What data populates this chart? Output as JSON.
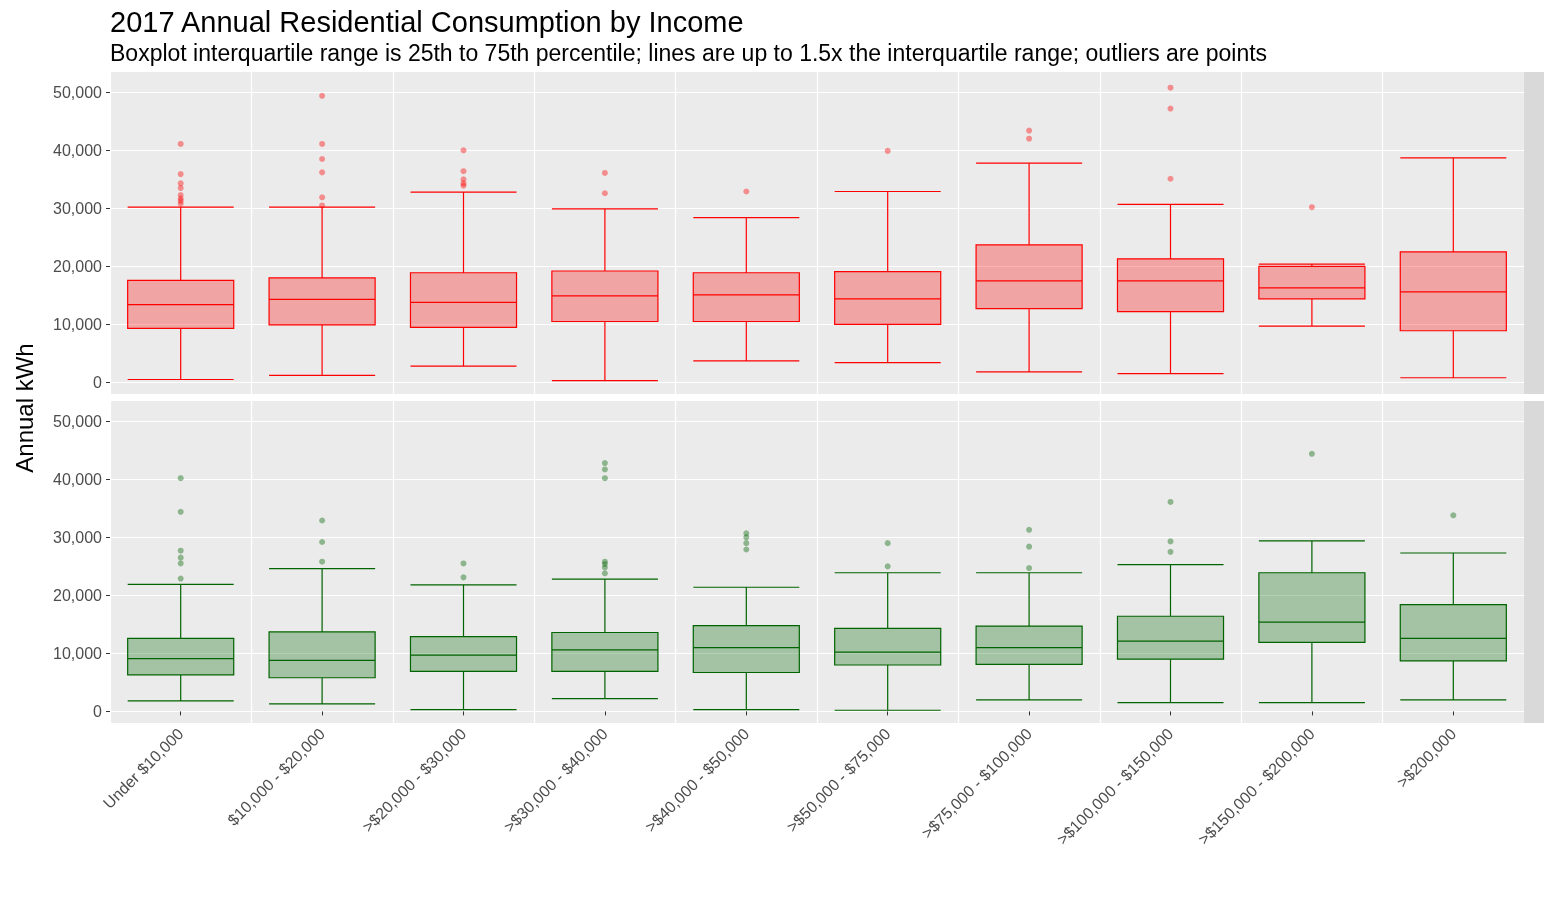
{
  "chart_data": [
    {
      "type": "box",
      "title": "2017 Annual Residential Consumption by Income",
      "subtitle": "Boxplot interquartile range is 25th to 75th percentile; lines are up to 1.5x the interquartile range; outliers are points",
      "ylabel": "Annual kWh",
      "ylim": [
        -2000,
        53500
      ],
      "yticks": [
        {
          "value": 0,
          "label": "0"
        },
        {
          "value": 10000,
          "label": "10,000"
        },
        {
          "value": 20000,
          "label": "20,000"
        },
        {
          "value": 30000,
          "label": "30,000"
        },
        {
          "value": 40000,
          "label": "40,000"
        },
        {
          "value": 50000,
          "label": "50,000"
        }
      ],
      "grid": true,
      "tick_labels": "y",
      "series": [
        {
          "color": "#ff0000",
          "boxes": [
            {
              "low": 500,
              "q1": 9300,
              "median": 13400,
              "q3": 17600,
              "high": 30200,
              "outliers": [
                41100,
                35900,
                34300,
                33500,
                32300,
                31700,
                31300,
                30800
              ]
            },
            {
              "low": 1200,
              "q1": 9900,
              "median": 14300,
              "q3": 18000,
              "high": 30200,
              "outliers": [
                49400,
                41100,
                38500,
                36200,
                31900,
                30500
              ]
            },
            {
              "low": 2800,
              "q1": 9500,
              "median": 13800,
              "q3": 18900,
              "high": 32800,
              "outliers": [
                40000,
                36400,
                35000,
                34300,
                33900
              ]
            },
            {
              "low": 300,
              "q1": 10500,
              "median": 14900,
              "q3": 19200,
              "high": 29900,
              "outliers": [
                36100,
                32600
              ]
            },
            {
              "low": 3700,
              "q1": 10500,
              "median": 15100,
              "q3": 18900,
              "high": 28400,
              "outliers": [
                32900
              ]
            },
            {
              "low": 3400,
              "q1": 10000,
              "median": 14400,
              "q3": 19100,
              "high": 32900,
              "outliers": [
                39900
              ]
            },
            {
              "low": 1800,
              "q1": 12700,
              "median": 17500,
              "q3": 23700,
              "high": 37800,
              "outliers": [
                43400,
                42000
              ]
            },
            {
              "low": 1500,
              "q1": 12200,
              "median": 17500,
              "q3": 21300,
              "high": 30700,
              "outliers": [
                50800,
                47200,
                35100
              ]
            },
            {
              "low": 9700,
              "q1": 14400,
              "median": 16300,
              "q3": 20000,
              "high": 20400,
              "outliers": [
                30200
              ]
            },
            {
              "low": 800,
              "q1": 8900,
              "median": 15600,
              "q3": 22500,
              "high": 38700
            }
          ]
        }
      ]
    },
    {
      "type": "box",
      "categories": [
        "Under $10,000",
        "$10,000 - $20,000",
        ">$20,000 - $30,000",
        ">$30,000 - $40,000",
        ">$40,000 - $50,000",
        ">$50,000 - $75,000",
        ">$75,000 - $100,000",
        ">$100,000 - $150,000",
        ">$150,000 - $200,000",
        ">$200,000"
      ],
      "ylim": [
        -2000,
        53500
      ],
      "yticks": [
        {
          "value": 0,
          "label": "0"
        },
        {
          "value": 10000,
          "label": "10,000"
        },
        {
          "value": 20000,
          "label": "20,000"
        },
        {
          "value": 30000,
          "label": "30,000"
        },
        {
          "value": 40000,
          "label": "40,000"
        },
        {
          "value": 50000,
          "label": "50,000"
        }
      ],
      "grid": true,
      "series": [
        {
          "color": "#006400",
          "boxes": [
            {
              "low": 1800,
              "q1": 6300,
              "median": 9100,
              "q3": 12600,
              "high": 21900,
              "outliers": [
                40200,
                34400,
                27700,
                26500,
                25500,
                22900
              ]
            },
            {
              "low": 1300,
              "q1": 5800,
              "median": 8800,
              "q3": 13700,
              "high": 24600,
              "outliers": [
                32900,
                29200,
                25800
              ]
            },
            {
              "low": 300,
              "q1": 6900,
              "median": 9700,
              "q3": 12900,
              "high": 21800,
              "outliers": [
                25500,
                23100
              ]
            },
            {
              "low": 2200,
              "q1": 6900,
              "median": 10600,
              "q3": 13600,
              "high": 22800,
              "outliers": [
                42800,
                41700,
                40200,
                25800,
                25400,
                24800,
                23800
              ]
            },
            {
              "low": 300,
              "q1": 6700,
              "median": 11000,
              "q3": 14800,
              "high": 21400,
              "outliers": [
                30700,
                30000,
                29000,
                27900
              ]
            },
            {
              "low": 200,
              "q1": 8000,
              "median": 10200,
              "q3": 14300,
              "high": 23900,
              "outliers": [
                29000,
                25000
              ]
            },
            {
              "low": 2000,
              "q1": 8100,
              "median": 11000,
              "q3": 14700,
              "high": 23900,
              "outliers": [
                31300,
                28400,
                24700
              ]
            },
            {
              "low": 1500,
              "q1": 9000,
              "median": 12100,
              "q3": 16400,
              "high": 25300,
              "outliers": [
                36100,
                29300,
                27500
              ]
            },
            {
              "low": 1500,
              "q1": 11900,
              "median": 15400,
              "q3": 23900,
              "high": 29400,
              "outliers": [
                44400
              ]
            },
            {
              "low": 2000,
              "q1": 8700,
              "median": 12600,
              "q3": 18400,
              "high": 27300,
              "outliers": [
                33800
              ]
            }
          ]
        }
      ]
    }
  ]
}
